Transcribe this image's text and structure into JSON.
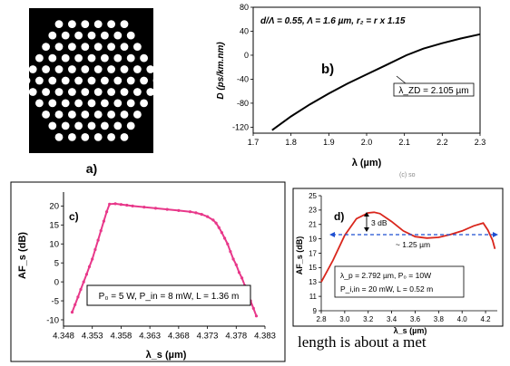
{
  "panels": {
    "a": {
      "label": "a)",
      "hole_ring_counts": [
        1,
        6,
        12,
        18,
        24,
        30
      ]
    },
    "b": {
      "label": "b)",
      "annotation": "d/Λ = 0.55, Λ = 1.6 µm, r₂ = r x 1.15",
      "zd_label": "λ_ZD = 2.105 µm",
      "cut_caption": "(c) so",
      "xlabel": "λ (µm)",
      "ylabel": "D (ps/km.nm)",
      "xticks": [
        "1.7",
        "1.8",
        "1.9",
        "2.0",
        "2.1",
        "2.2",
        "2.3"
      ],
      "yticks": [
        "80",
        "40",
        "0",
        "-40",
        "-80",
        "-120"
      ]
    },
    "c": {
      "label": "c)",
      "params": "P₀ = 5 W, P_in = 8 mW, L = 1.36 m",
      "xlabel": "λ_s (µm)",
      "ylabel": "AF_s (dB)",
      "xticks": [
        "4.348",
        "4.353",
        "4.358",
        "4.363",
        "4.368",
        "4.373",
        "4.378",
        "4.383"
      ],
      "yticks": [
        "20",
        "15",
        "10",
        "5",
        "0",
        "-5",
        "-10"
      ]
    },
    "d": {
      "label": "d)",
      "ripple_label": "3 dB",
      "bandwidth_label": "~ 1.25 µm",
      "params_line1": "λ_p = 2.792 µm, P₀ = 10W",
      "params_line2": "P_i,in = 20 mW, L = 0.52 m",
      "xlabel": "λ_s (µm)",
      "ylabel": "AF_s (dB)",
      "xticks": [
        "2.8",
        "3.0",
        "3.2",
        "3.4",
        "3.6",
        "3.8",
        "4.0",
        "4.2"
      ],
      "yticks": [
        "25",
        "23",
        "21",
        "19",
        "17",
        "15",
        "13",
        "11",
        "9"
      ]
    }
  },
  "body_text": "length is about a met",
  "colors": {
    "curve_pink": "#e8388a",
    "curve_red": "#d9261c",
    "arrow_blue": "#1f4fd1"
  },
  "chart_data": [
    {
      "type": "line",
      "panel": "b",
      "xlabel": "λ (µm)",
      "ylabel": "D (ps/km.nm)",
      "xlim": [
        1.7,
        2.3
      ],
      "ylim": [
        -130,
        80
      ],
      "grid": false,
      "series": [
        {
          "x": [
            1.75,
            1.8,
            1.85,
            1.9,
            1.95,
            2.0,
            2.05,
            2.105,
            2.15,
            2.2,
            2.25,
            2.3
          ],
          "y": [
            -125,
            -102,
            -82,
            -64,
            -47,
            -32,
            -17,
            0,
            11,
            20,
            28,
            35
          ]
        }
      ]
    },
    {
      "type": "line",
      "panel": "c",
      "xlabel": "λ_s (µm)",
      "ylabel": "AF_s (dB)",
      "xlim": [
        4.348,
        4.383
      ],
      "ylim": [
        -10,
        22
      ],
      "grid": false,
      "series": [
        {
          "x": [
            4.3495,
            4.35,
            4.3505,
            4.351,
            4.3515,
            4.352,
            4.3525,
            4.353,
            4.3535,
            4.354,
            4.3545,
            4.355,
            4.3555,
            4.356,
            4.357,
            4.358,
            4.359,
            4.36,
            4.362,
            4.364,
            4.366,
            4.368,
            4.37,
            4.371,
            4.372,
            4.373,
            4.374,
            4.3745,
            4.375,
            4.3755,
            4.376,
            4.3765,
            4.377,
            4.3775,
            4.378,
            4.3785,
            4.379,
            4.3795,
            4.38,
            4.3805,
            4.381,
            4.3815
          ],
          "y": [
            -8,
            -6,
            -4,
            -2,
            0,
            2,
            4,
            6,
            8.5,
            11,
            13.5,
            16,
            18.5,
            20.5,
            20.6,
            20.4,
            20.2,
            20,
            19.7,
            19.4,
            19.1,
            18.8,
            18.5,
            18.2,
            17.8,
            17.2,
            16.3,
            15.5,
            14.3,
            13,
            11.5,
            10,
            8,
            6,
            4.5,
            2.5,
            1,
            -1,
            -3,
            -5,
            -7,
            -9
          ]
        }
      ]
    },
    {
      "type": "line",
      "panel": "d",
      "xlabel": "λ_s (µm)",
      "ylabel": "AF_s (dB)",
      "xlim": [
        2.8,
        4.3
      ],
      "ylim": [
        9,
        25
      ],
      "grid": false,
      "series": [
        {
          "x": [
            2.8,
            2.9,
            3.0,
            3.1,
            3.2,
            3.25,
            3.3,
            3.4,
            3.5,
            3.6,
            3.7,
            3.8,
            3.9,
            4.0,
            4.1,
            4.18,
            4.22,
            4.26,
            4.28
          ],
          "y": [
            13,
            16,
            19.5,
            21.8,
            22.6,
            22.7,
            22.5,
            21.4,
            20.1,
            19.3,
            19.1,
            19.2,
            19.6,
            20.1,
            20.8,
            21.2,
            20.2,
            18.8,
            17.6
          ]
        }
      ]
    }
  ]
}
